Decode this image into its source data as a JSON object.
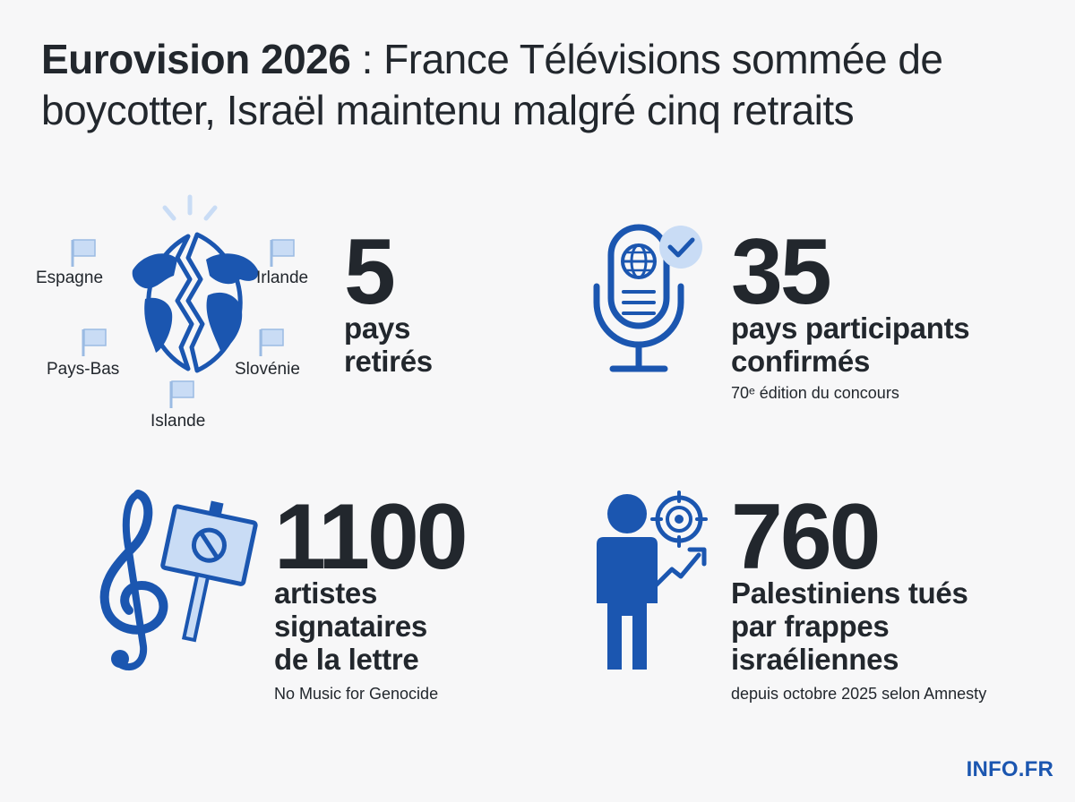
{
  "title": {
    "lead": "Eurovision 2026",
    "rest": " : France Télévisions sommée de boycotter, Israël maintenu malgré cinq retraits"
  },
  "colors": {
    "accent": "#1b56b0",
    "light_blue": "#c9dcf5",
    "text": "#22272d",
    "background": "#f7f7f8"
  },
  "stats": [
    {
      "value": "5",
      "label": [
        "pays",
        "retirés"
      ],
      "note": "",
      "icon": "broken-globe-icon",
      "countries": [
        "Espagne",
        "Irlande",
        "Pays-Bas",
        "Slovénie",
        "Islande"
      ]
    },
    {
      "value": "35",
      "label": [
        "pays participants",
        "confirmés"
      ],
      "note": "70ᵉ édition du concours",
      "icon": "microphone-globe-check-icon"
    },
    {
      "value": "1100",
      "label": [
        "artistes",
        "signataires",
        "de la lettre"
      ],
      "note": "No Music for Genocide",
      "icon": "treble-clef-protest-sign-icon"
    },
    {
      "value": "760",
      "label": [
        "Palestiniens tués",
        "par frappes",
        "israéliennes"
      ],
      "note": "depuis octobre 2025 selon Amnesty",
      "icon": "person-target-icon"
    }
  ],
  "brand": "INFO.FR"
}
